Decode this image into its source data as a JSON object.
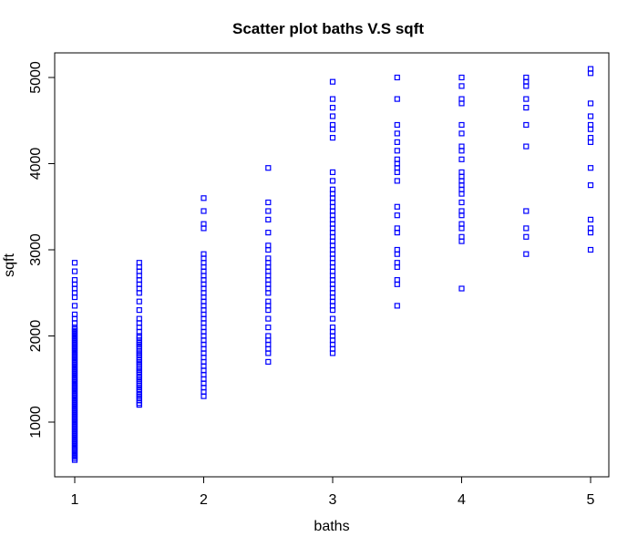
{
  "chart_data": {
    "type": "scatter",
    "title": "Scatter plot baths V.S sqft",
    "xlabel": "baths",
    "ylabel": "sqft",
    "xlim": [
      0.9,
      5.1
    ],
    "ylim": [
      450,
      5200
    ],
    "xticks": [
      1,
      2,
      3,
      4,
      5
    ],
    "yticks": [
      1000,
      2000,
      3000,
      4000,
      5000
    ],
    "grid": false,
    "legend": "none",
    "marker": "open-square",
    "point_color": "#0000ff",
    "series": [
      {
        "points": [
          [
            1,
            560
          ],
          [
            1,
            580
          ],
          [
            1,
            600
          ],
          [
            1,
            620
          ],
          [
            1,
            640
          ],
          [
            1,
            660
          ],
          [
            1,
            680
          ],
          [
            1,
            700
          ],
          [
            1,
            720
          ],
          [
            1,
            740
          ],
          [
            1,
            760
          ],
          [
            1,
            780
          ],
          [
            1,
            800
          ],
          [
            1,
            820
          ],
          [
            1,
            840
          ],
          [
            1,
            860
          ],
          [
            1,
            880
          ],
          [
            1,
            900
          ],
          [
            1,
            920
          ],
          [
            1,
            940
          ],
          [
            1,
            960
          ],
          [
            1,
            980
          ],
          [
            1,
            1000
          ],
          [
            1,
            1020
          ],
          [
            1,
            1040
          ],
          [
            1,
            1060
          ],
          [
            1,
            1080
          ],
          [
            1,
            1100
          ],
          [
            1,
            1120
          ],
          [
            1,
            1140
          ],
          [
            1,
            1160
          ],
          [
            1,
            1180
          ],
          [
            1,
            1200
          ],
          [
            1,
            1220
          ],
          [
            1,
            1240
          ],
          [
            1,
            1260
          ],
          [
            1,
            1280
          ],
          [
            1,
            1300
          ],
          [
            1,
            1320
          ],
          [
            1,
            1340
          ],
          [
            1,
            1360
          ],
          [
            1,
            1380
          ],
          [
            1,
            1400
          ],
          [
            1,
            1420
          ],
          [
            1,
            1440
          ],
          [
            1,
            1460
          ],
          [
            1,
            1480
          ],
          [
            1,
            1500
          ],
          [
            1,
            1520
          ],
          [
            1,
            1540
          ],
          [
            1,
            1560
          ],
          [
            1,
            1580
          ],
          [
            1,
            1600
          ],
          [
            1,
            1620
          ],
          [
            1,
            1640
          ],
          [
            1,
            1660
          ],
          [
            1,
            1680
          ],
          [
            1,
            1700
          ],
          [
            1,
            1720
          ],
          [
            1,
            1740
          ],
          [
            1,
            1760
          ],
          [
            1,
            1780
          ],
          [
            1,
            1800
          ],
          [
            1,
            1820
          ],
          [
            1,
            1840
          ],
          [
            1,
            1860
          ],
          [
            1,
            1880
          ],
          [
            1,
            1900
          ],
          [
            1,
            1920
          ],
          [
            1,
            1940
          ],
          [
            1,
            1960
          ],
          [
            1,
            1980
          ],
          [
            1,
            2000
          ],
          [
            1,
            2020
          ],
          [
            1,
            2040
          ],
          [
            1,
            2060
          ],
          [
            1,
            2080
          ],
          [
            1,
            2100
          ],
          [
            1,
            2150
          ],
          [
            1,
            2200
          ],
          [
            1,
            2250
          ],
          [
            1,
            2350
          ],
          [
            1,
            2450
          ],
          [
            1,
            2500
          ],
          [
            1,
            2550
          ],
          [
            1,
            2600
          ],
          [
            1,
            2650
          ],
          [
            1,
            2750
          ],
          [
            1,
            2850
          ],
          [
            1.5,
            1200
          ],
          [
            1.5,
            1220
          ],
          [
            1.5,
            1250
          ],
          [
            1.5,
            1280
          ],
          [
            1.5,
            1300
          ],
          [
            1.5,
            1320
          ],
          [
            1.5,
            1350
          ],
          [
            1.5,
            1380
          ],
          [
            1.5,
            1400
          ],
          [
            1.5,
            1420
          ],
          [
            1.5,
            1450
          ],
          [
            1.5,
            1480
          ],
          [
            1.5,
            1500
          ],
          [
            1.5,
            1520
          ],
          [
            1.5,
            1550
          ],
          [
            1.5,
            1580
          ],
          [
            1.5,
            1600
          ],
          [
            1.5,
            1620
          ],
          [
            1.5,
            1650
          ],
          [
            1.5,
            1680
          ],
          [
            1.5,
            1700
          ],
          [
            1.5,
            1720
          ],
          [
            1.5,
            1750
          ],
          [
            1.5,
            1780
          ],
          [
            1.5,
            1800
          ],
          [
            1.5,
            1820
          ],
          [
            1.5,
            1850
          ],
          [
            1.5,
            1880
          ],
          [
            1.5,
            1900
          ],
          [
            1.5,
            1920
          ],
          [
            1.5,
            1950
          ],
          [
            1.5,
            1980
          ],
          [
            1.5,
            2000
          ],
          [
            1.5,
            2050
          ],
          [
            1.5,
            2100
          ],
          [
            1.5,
            2150
          ],
          [
            1.5,
            2200
          ],
          [
            1.5,
            2300
          ],
          [
            1.5,
            2400
          ],
          [
            1.5,
            2500
          ],
          [
            1.5,
            2550
          ],
          [
            1.5,
            2600
          ],
          [
            1.5,
            2650
          ],
          [
            1.5,
            2700
          ],
          [
            1.5,
            2750
          ],
          [
            1.5,
            2800
          ],
          [
            1.5,
            2850
          ],
          [
            2,
            1300
          ],
          [
            2,
            1350
          ],
          [
            2,
            1400
          ],
          [
            2,
            1450
          ],
          [
            2,
            1500
          ],
          [
            2,
            1550
          ],
          [
            2,
            1600
          ],
          [
            2,
            1650
          ],
          [
            2,
            1700
          ],
          [
            2,
            1750
          ],
          [
            2,
            1800
          ],
          [
            2,
            1850
          ],
          [
            2,
            1900
          ],
          [
            2,
            1950
          ],
          [
            2,
            2000
          ],
          [
            2,
            2050
          ],
          [
            2,
            2100
          ],
          [
            2,
            2150
          ],
          [
            2,
            2200
          ],
          [
            2,
            2250
          ],
          [
            2,
            2300
          ],
          [
            2,
            2350
          ],
          [
            2,
            2400
          ],
          [
            2,
            2450
          ],
          [
            2,
            2500
          ],
          [
            2,
            2550
          ],
          [
            2,
            2600
          ],
          [
            2,
            2650
          ],
          [
            2,
            2700
          ],
          [
            2,
            2750
          ],
          [
            2,
            2800
          ],
          [
            2,
            2850
          ],
          [
            2,
            2900
          ],
          [
            2,
            2950
          ],
          [
            2,
            3250
          ],
          [
            2,
            3300
          ],
          [
            2,
            3450
          ],
          [
            2,
            3600
          ],
          [
            2.5,
            1700
          ],
          [
            2.5,
            1800
          ],
          [
            2.5,
            1850
          ],
          [
            2.5,
            1900
          ],
          [
            2.5,
            1950
          ],
          [
            2.5,
            2000
          ],
          [
            2.5,
            2100
          ],
          [
            2.5,
            2200
          ],
          [
            2.5,
            2300
          ],
          [
            2.5,
            2350
          ],
          [
            2.5,
            2400
          ],
          [
            2.5,
            2500
          ],
          [
            2.5,
            2550
          ],
          [
            2.5,
            2600
          ],
          [
            2.5,
            2650
          ],
          [
            2.5,
            2700
          ],
          [
            2.5,
            2750
          ],
          [
            2.5,
            2800
          ],
          [
            2.5,
            2850
          ],
          [
            2.5,
            2900
          ],
          [
            2.5,
            3000
          ],
          [
            2.5,
            3050
          ],
          [
            2.5,
            3200
          ],
          [
            2.5,
            3350
          ],
          [
            2.5,
            3450
          ],
          [
            2.5,
            3550
          ],
          [
            2.5,
            3950
          ],
          [
            3,
            1800
          ],
          [
            3,
            1850
          ],
          [
            3,
            1900
          ],
          [
            3,
            1950
          ],
          [
            3,
            2000
          ],
          [
            3,
            2050
          ],
          [
            3,
            2100
          ],
          [
            3,
            2200
          ],
          [
            3,
            2300
          ],
          [
            3,
            2350
          ],
          [
            3,
            2400
          ],
          [
            3,
            2450
          ],
          [
            3,
            2500
          ],
          [
            3,
            2550
          ],
          [
            3,
            2600
          ],
          [
            3,
            2650
          ],
          [
            3,
            2700
          ],
          [
            3,
            2750
          ],
          [
            3,
            2800
          ],
          [
            3,
            2850
          ],
          [
            3,
            2900
          ],
          [
            3,
            2950
          ],
          [
            3,
            3000
          ],
          [
            3,
            3050
          ],
          [
            3,
            3100
          ],
          [
            3,
            3150
          ],
          [
            3,
            3200
          ],
          [
            3,
            3250
          ],
          [
            3,
            3300
          ],
          [
            3,
            3350
          ],
          [
            3,
            3400
          ],
          [
            3,
            3450
          ],
          [
            3,
            3500
          ],
          [
            3,
            3550
          ],
          [
            3,
            3600
          ],
          [
            3,
            3650
          ],
          [
            3,
            3700
          ],
          [
            3,
            3800
          ],
          [
            3,
            3900
          ],
          [
            3,
            4300
          ],
          [
            3,
            4400
          ],
          [
            3,
            4450
          ],
          [
            3,
            4550
          ],
          [
            3,
            4650
          ],
          [
            3,
            4750
          ],
          [
            3,
            4950
          ],
          [
            3.5,
            2350
          ],
          [
            3.5,
            2600
          ],
          [
            3.5,
            2650
          ],
          [
            3.5,
            2800
          ],
          [
            3.5,
            2850
          ],
          [
            3.5,
            2950
          ],
          [
            3.5,
            3000
          ],
          [
            3.5,
            3200
          ],
          [
            3.5,
            3250
          ],
          [
            3.5,
            3400
          ],
          [
            3.5,
            3500
          ],
          [
            3.5,
            3800
          ],
          [
            3.5,
            3900
          ],
          [
            3.5,
            3950
          ],
          [
            3.5,
            4000
          ],
          [
            3.5,
            4050
          ],
          [
            3.5,
            4150
          ],
          [
            3.5,
            4250
          ],
          [
            3.5,
            4350
          ],
          [
            3.5,
            4450
          ],
          [
            3.5,
            4750
          ],
          [
            3.5,
            5000
          ],
          [
            4,
            2550
          ],
          [
            4,
            3100
          ],
          [
            4,
            3150
          ],
          [
            4,
            3250
          ],
          [
            4,
            3300
          ],
          [
            4,
            3400
          ],
          [
            4,
            3450
          ],
          [
            4,
            3550
          ],
          [
            4,
            3650
          ],
          [
            4,
            3700
          ],
          [
            4,
            3750
          ],
          [
            4,
            3800
          ],
          [
            4,
            3850
          ],
          [
            4,
            3900
          ],
          [
            4,
            4050
          ],
          [
            4,
            4150
          ],
          [
            4,
            4200
          ],
          [
            4,
            4350
          ],
          [
            4,
            4450
          ],
          [
            4,
            4700
          ],
          [
            4,
            4750
          ],
          [
            4,
            4900
          ],
          [
            4,
            5000
          ],
          [
            4.5,
            2950
          ],
          [
            4.5,
            3150
          ],
          [
            4.5,
            3250
          ],
          [
            4.5,
            3450
          ],
          [
            4.5,
            4200
          ],
          [
            4.5,
            4450
          ],
          [
            4.5,
            4650
          ],
          [
            4.5,
            4750
          ],
          [
            4.5,
            4900
          ],
          [
            4.5,
            4950
          ],
          [
            4.5,
            5000
          ],
          [
            5,
            3000
          ],
          [
            5,
            3200
          ],
          [
            5,
            3250
          ],
          [
            5,
            3350
          ],
          [
            5,
            3750
          ],
          [
            5,
            3950
          ],
          [
            5,
            4250
          ],
          [
            5,
            4300
          ],
          [
            5,
            4400
          ],
          [
            5,
            4450
          ],
          [
            5,
            4550
          ],
          [
            5,
            4700
          ],
          [
            5,
            5050
          ],
          [
            5,
            5100
          ]
        ]
      }
    ]
  }
}
